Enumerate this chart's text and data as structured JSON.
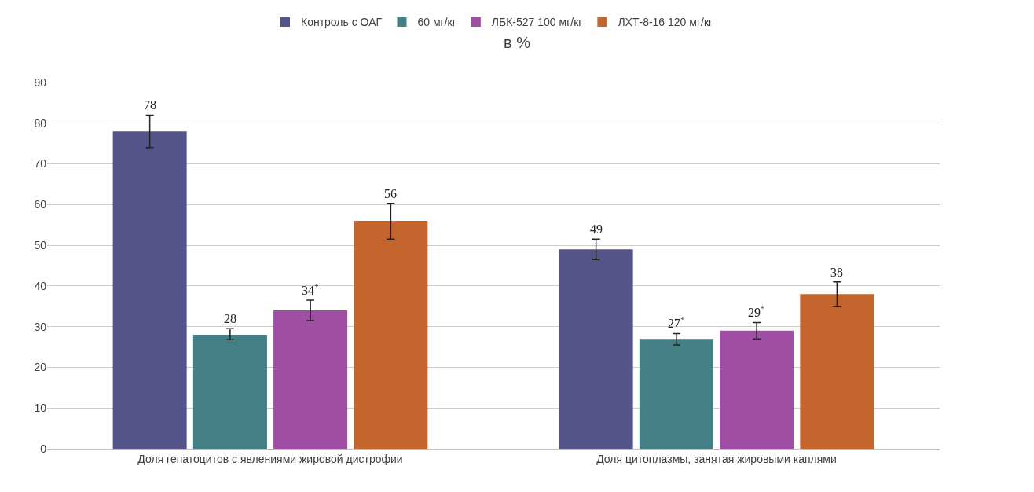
{
  "chart_data": {
    "type": "bar",
    "title": "в %",
    "categories": [
      "Доля гепатоцитов с явлениями жировой дистрофии",
      "Доля цитоплазмы, занятая жировыми каплями"
    ],
    "series": [
      {
        "name": "Контроль с ОАГ",
        "color": "#54548a",
        "values": [
          78,
          49
        ],
        "errors": [
          [
            74,
            82
          ],
          [
            46.5,
            51.5
          ]
        ],
        "value_labels": [
          "78",
          "49"
        ]
      },
      {
        "name": "60 мг/кг",
        "color": "#437f85",
        "values": [
          28,
          27
        ],
        "errors": [
          [
            26.8,
            29.5
          ],
          [
            25.5,
            28.3
          ]
        ],
        "value_labels": [
          "28",
          "27$^{*}$"
        ]
      },
      {
        "name": "ЛБК-527 100 мг/кг",
        "color": "#a04ea4",
        "values": [
          34,
          29
        ],
        "errors": [
          [
            31.5,
            36.5
          ],
          [
            27,
            31
          ]
        ],
        "value_labels": [
          "34$^{*}$",
          "29$^{*}$"
        ]
      },
      {
        "name": "ЛХТ-8-16 120 мг/кг",
        "color": "#c4652e",
        "values": [
          56,
          38
        ],
        "errors": [
          [
            51.5,
            60.3
          ],
          [
            35,
            41
          ]
        ],
        "value_labels": [
          "56",
          "38"
        ]
      }
    ],
    "ylim": [
      0,
      90
    ],
    "yticks": [
      0,
      10,
      20,
      30,
      40,
      50,
      60,
      70,
      80,
      90
    ],
    "grid": "y",
    "legend": "top"
  }
}
